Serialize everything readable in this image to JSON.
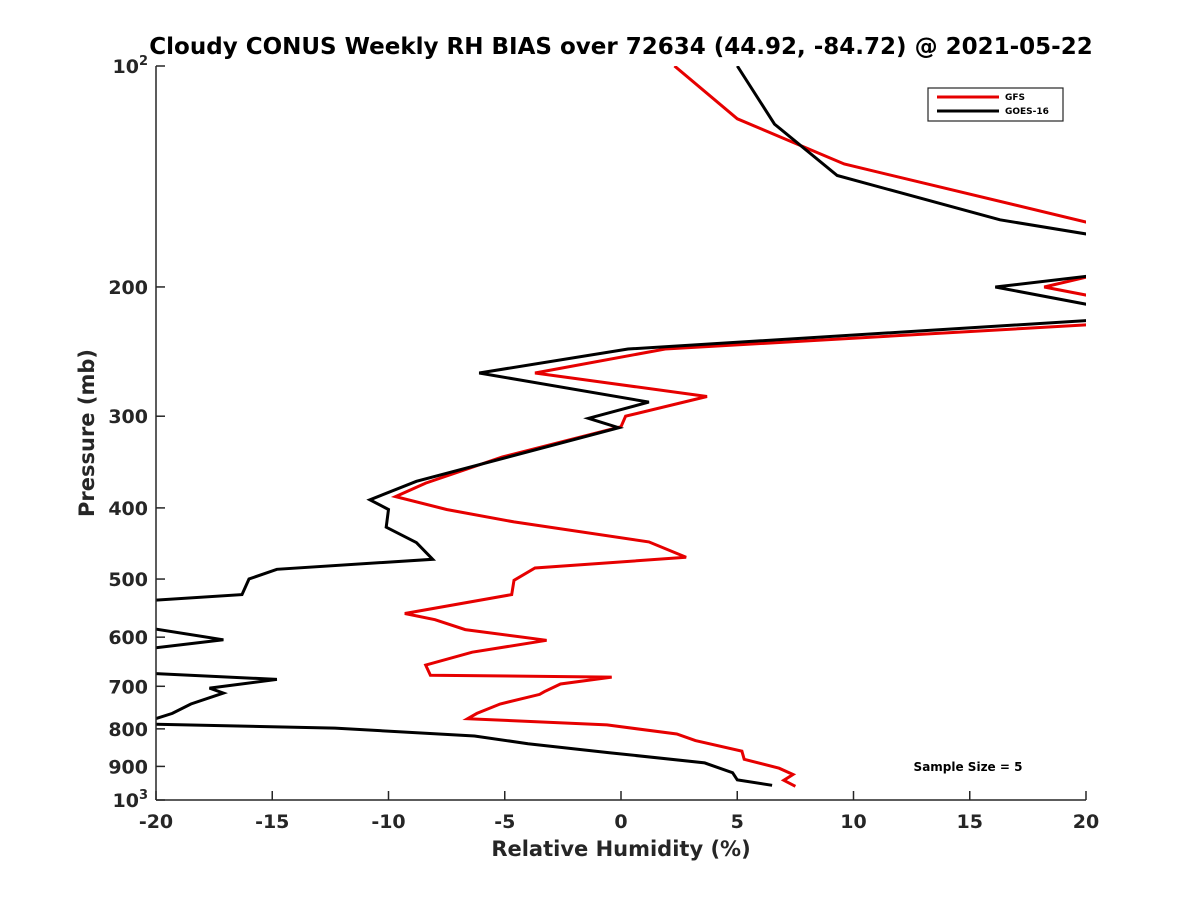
{
  "chart_data": {
    "type": "line",
    "title": "Cloudy CONUS Weekly RH BIAS over 72634 (44.92, -84.72) @ 2021-05-22",
    "xlabel": "Relative Humidity (%)",
    "ylabel": "Pressure (mb)",
    "xlim": [
      -20,
      20
    ],
    "ylim": [
      100,
      1000
    ],
    "y_scale": "log",
    "y_reversed": true,
    "grid": false,
    "legend_position": "top-right",
    "x_ticks": [
      -20,
      -15,
      -10,
      -5,
      0,
      5,
      10,
      15,
      20
    ],
    "x_tick_labels": [
      "-20",
      "-15",
      "-10",
      "-5",
      "0",
      "5",
      "10",
      "15",
      "20"
    ],
    "y_ticks": [
      100,
      200,
      300,
      400,
      500,
      600,
      700,
      800,
      900,
      1000
    ],
    "y_tick_labels": [
      {
        "base": "10",
        "exp": "2"
      },
      {
        "base": "200",
        "exp": ""
      },
      {
        "base": "300",
        "exp": ""
      },
      {
        "base": "400",
        "exp": ""
      },
      {
        "base": "500",
        "exp": ""
      },
      {
        "base": "600",
        "exp": ""
      },
      {
        "base": "700",
        "exp": ""
      },
      {
        "base": "800",
        "exp": ""
      },
      {
        "base": "900",
        "exp": ""
      },
      {
        "base": "10",
        "exp": "3"
      }
    ],
    "annotation": "Sample Size = 5",
    "series": [
      {
        "name": "GFS",
        "color": "#e60000",
        "points": [
          [
            2.3,
            100
          ],
          [
            5.0,
            118
          ],
          [
            9.6,
            136
          ],
          [
            20.3,
            164
          ],
          [
            20.3,
            193
          ],
          [
            18.2,
            200
          ],
          [
            20.3,
            206
          ],
          [
            20.3,
            225
          ],
          [
            1.9,
            243
          ],
          [
            -3.7,
            262
          ],
          [
            3.7,
            282
          ],
          [
            0.2,
            300
          ],
          [
            0.0,
            310
          ],
          [
            -5.1,
            341
          ],
          [
            -8.4,
            370
          ],
          [
            -9.7,
            386
          ],
          [
            -7.5,
            402
          ],
          [
            -4.6,
            418
          ],
          [
            1.2,
            445
          ],
          [
            2.8,
            467
          ],
          [
            -3.7,
            483
          ],
          [
            -4.6,
            502
          ],
          [
            -4.7,
            525
          ],
          [
            -9.3,
            557
          ],
          [
            -8.0,
            568
          ],
          [
            -6.7,
            586
          ],
          [
            -3.2,
            606
          ],
          [
            -6.4,
            629
          ],
          [
            -8.4,
            655
          ],
          [
            -8.2,
            676
          ],
          [
            -0.4,
            680
          ],
          [
            -2.6,
            695
          ],
          [
            -3.3,
            712
          ],
          [
            -3.5,
            718
          ],
          [
            -5.2,
            740
          ],
          [
            -6.2,
            762
          ],
          [
            -6.6,
            775
          ],
          [
            -0.6,
            790
          ],
          [
            2.4,
            813
          ],
          [
            3.2,
            830
          ],
          [
            5.2,
            858
          ],
          [
            5.3,
            880
          ],
          [
            6.8,
            905
          ],
          [
            7.4,
            923
          ],
          [
            7.0,
            940
          ],
          [
            7.5,
            958
          ]
        ]
      },
      {
        "name": "GOES-16",
        "color": "#000000",
        "points": [
          [
            5.0,
            100
          ],
          [
            6.6,
            120
          ],
          [
            9.3,
            141
          ],
          [
            16.3,
            162
          ],
          [
            20.3,
            170
          ],
          [
            20.3,
            193
          ],
          [
            16.1,
            200
          ],
          [
            20.3,
            212
          ],
          [
            20.3,
            222
          ],
          [
            0.3,
            243
          ],
          [
            -6.1,
            262
          ],
          [
            1.2,
            287
          ],
          [
            -1.4,
            302
          ],
          [
            -0.1,
            311
          ],
          [
            -8.8,
            368
          ],
          [
            -10.8,
            390
          ],
          [
            -10.0,
            402
          ],
          [
            -10.1,
            425
          ],
          [
            -8.8,
            446
          ],
          [
            -8.1,
            470
          ],
          [
            -14.8,
            485
          ],
          [
            -16.0,
            500
          ],
          [
            -16.3,
            525
          ],
          [
            -20.3,
            535
          ],
          [
            -20.3,
            583
          ],
          [
            -17.1,
            605
          ],
          [
            -20.3,
            622
          ],
          [
            -20.3,
            672
          ],
          [
            -14.8,
            685
          ],
          [
            -17.7,
            704
          ],
          [
            -17.1,
            715
          ],
          [
            -18.5,
            740
          ],
          [
            -19.3,
            762
          ],
          [
            -20.3,
            780
          ],
          [
            -20.3,
            788
          ],
          [
            -12.3,
            798
          ],
          [
            -6.3,
            818
          ],
          [
            -4.0,
            838
          ],
          [
            -0.5,
            862
          ],
          [
            3.6,
            890
          ],
          [
            4.8,
            918
          ],
          [
            5.0,
            939
          ],
          [
            6.5,
            955
          ]
        ]
      }
    ]
  }
}
